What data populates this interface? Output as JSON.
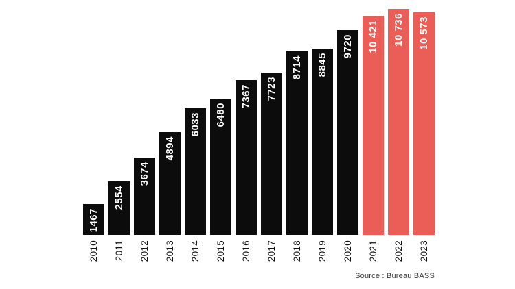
{
  "chart_data": {
    "type": "bar",
    "categories": [
      "2010",
      "2011",
      "2012",
      "2013",
      "2014",
      "2015",
      "2016",
      "2017",
      "2018",
      "2019",
      "2020",
      "2021",
      "2022",
      "2023"
    ],
    "values": [
      1467,
      2554,
      3674,
      4894,
      6033,
      6480,
      7367,
      7723,
      8714,
      8845,
      9720,
      10421,
      10736,
      10573
    ],
    "value_labels": [
      "1467",
      "2554",
      "3674",
      "4894",
      "6033",
      "6480",
      "7367",
      "7723",
      "8714",
      "8845",
      "9720",
      "10 421",
      "10 736",
      "10 573"
    ],
    "highlight_from_index": 11,
    "title": "",
    "xlabel": "",
    "ylabel": "",
    "ylim": [
      0,
      10736
    ],
    "grid": false,
    "legend": false,
    "bar_color": "#0c0c0c",
    "highlight_color": "#ea5e57",
    "value_text_color": "#ffffff",
    "axis_label_color": "#141414",
    "source": "Source : Bureau BASS"
  }
}
